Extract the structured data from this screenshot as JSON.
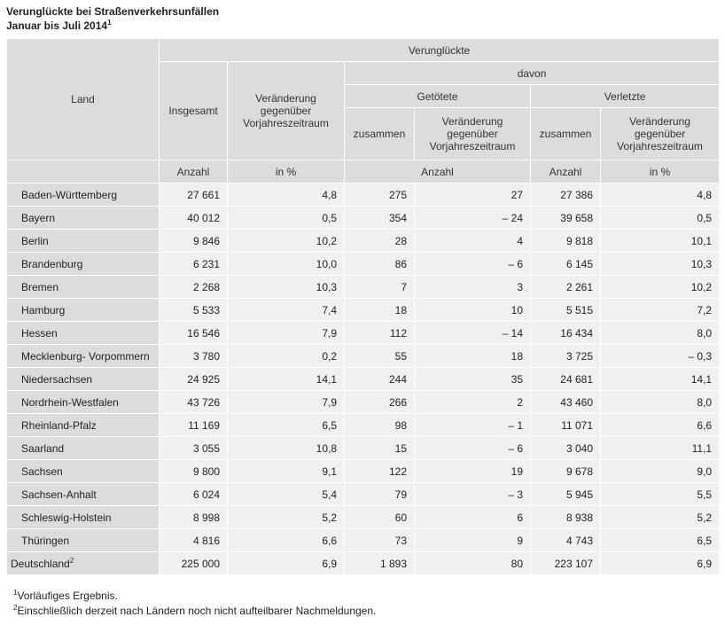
{
  "title": {
    "line1": "Verunglückte bei Straßenverkehrsunfällen",
    "line2": "Januar bis Juli 2014",
    "line2_sup": "1"
  },
  "header": {
    "land": "Land",
    "verunglueckte": "Verunglückte",
    "davon": "davon",
    "insgesamt": "Insgesamt",
    "veraenderung": "Veränderung gegenüber Vorjahreszeitraum",
    "getoetete": "Getötete",
    "verletzte": "Verletzte",
    "zusammen": "zusammen",
    "unit_anzahl": "Anzahl",
    "unit_prozent": "in %"
  },
  "rows": [
    {
      "land": "Baden-Württemberg",
      "insgesamt": "27 661",
      "insg_pct": "4,8",
      "getoetete": "275",
      "getoetete_chg": "27",
      "verletzte": "27 386",
      "verletzte_pct": "4,8"
    },
    {
      "land": "Bayern",
      "insgesamt": "40 012",
      "insg_pct": "0,5",
      "getoetete": "354",
      "getoetete_chg": "– 24",
      "verletzte": "39 658",
      "verletzte_pct": "0,5"
    },
    {
      "land": "Berlin",
      "insgesamt": "9 846",
      "insg_pct": "10,2",
      "getoetete": "28",
      "getoetete_chg": "4",
      "verletzte": "9 818",
      "verletzte_pct": "10,1"
    },
    {
      "land": "Brandenburg",
      "insgesamt": "6 231",
      "insg_pct": "10,0",
      "getoetete": "86",
      "getoetete_chg": "– 6",
      "verletzte": "6 145",
      "verletzte_pct": "10,3"
    },
    {
      "land": "Bremen",
      "insgesamt": "2 268",
      "insg_pct": "10,3",
      "getoetete": "7",
      "getoetete_chg": "3",
      "verletzte": "2 261",
      "verletzte_pct": "10,2"
    },
    {
      "land": "Hamburg",
      "insgesamt": "5 533",
      "insg_pct": "7,4",
      "getoetete": "18",
      "getoetete_chg": "10",
      "verletzte": "5 515",
      "verletzte_pct": "7,2"
    },
    {
      "land": "Hessen",
      "insgesamt": "16 546",
      "insg_pct": "7,9",
      "getoetete": "112",
      "getoetete_chg": "– 14",
      "verletzte": "16 434",
      "verletzte_pct": "8,0"
    },
    {
      "land": "Mecklenburg- Vorpommern",
      "insgesamt": "3 780",
      "insg_pct": "0,2",
      "getoetete": "55",
      "getoetete_chg": "18",
      "verletzte": "3 725",
      "verletzte_pct": "– 0,3"
    },
    {
      "land": "Niedersachsen",
      "insgesamt": "24 925",
      "insg_pct": "14,1",
      "getoetete": "244",
      "getoetete_chg": "35",
      "verletzte": "24 681",
      "verletzte_pct": "14,1"
    },
    {
      "land": "Nordrhein-Westfalen",
      "insgesamt": "43 726",
      "insg_pct": "7,9",
      "getoetete": "266",
      "getoetete_chg": "2",
      "verletzte": "43 460",
      "verletzte_pct": "8,0"
    },
    {
      "land": "Rheinland-Pfalz",
      "insgesamt": "11 169",
      "insg_pct": "6,5",
      "getoetete": "98",
      "getoetete_chg": "– 1",
      "verletzte": "11 071",
      "verletzte_pct": "6,6"
    },
    {
      "land": "Saarland",
      "insgesamt": "3 055",
      "insg_pct": "10,8",
      "getoetete": "15",
      "getoetete_chg": "– 6",
      "verletzte": "3 040",
      "verletzte_pct": "11,1"
    },
    {
      "land": "Sachsen",
      "insgesamt": "9 800",
      "insg_pct": "9,1",
      "getoetete": "122",
      "getoetete_chg": "19",
      "verletzte": "9 678",
      "verletzte_pct": "9,0"
    },
    {
      "land": "Sachsen-Anhalt",
      "insgesamt": "6 024",
      "insg_pct": "5,4",
      "getoetete": "79",
      "getoetete_chg": "– 3",
      "verletzte": "5 945",
      "verletzte_pct": "5,5"
    },
    {
      "land": "Schleswig-Holstein",
      "insgesamt": "8 998",
      "insg_pct": "5,2",
      "getoetete": "60",
      "getoetete_chg": "6",
      "verletzte": "8 938",
      "verletzte_pct": "5,2"
    },
    {
      "land": "Thüringen",
      "insgesamt": "4 816",
      "insg_pct": "6,6",
      "getoetete": "73",
      "getoetete_chg": "9",
      "verletzte": "4 743",
      "verletzte_pct": "6,5"
    }
  ],
  "total": {
    "land": "Deutschland",
    "land_sup": "2",
    "insgesamt": "225 000",
    "insg_pct": "6,9",
    "getoetete": "1 893",
    "getoetete_chg": "80",
    "verletzte": "223 107",
    "verletzte_pct": "6,9"
  },
  "footnotes": [
    {
      "sup": "1",
      "text": "Vorläufiges Ergebnis."
    },
    {
      "sup": "2",
      "text": "Einschließlich derzeit nach Ländern noch nicht aufteilbarer Nachmeldungen."
    }
  ]
}
